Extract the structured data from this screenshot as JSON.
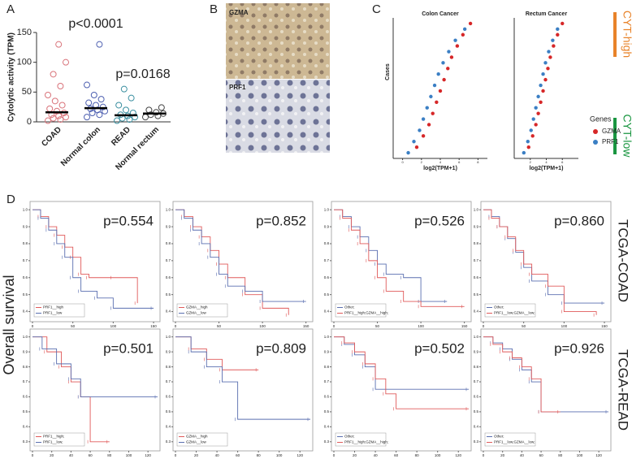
{
  "panel_letters": [
    "A",
    "B",
    "C",
    "D"
  ],
  "image_labels": [
    "GZMA",
    "PRF1"
  ],
  "cyt_labels": [
    "CYT-high",
    "CYT-low"
  ],
  "row_labels": [
    "TCGA-COAD",
    "TCGA-READ"
  ],
  "survival_label": "Overall survival",
  "chart_data": [
    {
      "type": "strip",
      "ylabel": "Cytolytic activity (TPM)",
      "categories": [
        "COAD",
        "Normal colon",
        "READ",
        "Normal rectum"
      ],
      "colors": [
        "#d9737a",
        "#4d5fb0",
        "#3a8fa0",
        "#444444"
      ],
      "values": [
        16,
        23,
        11,
        14
      ],
      "points": [
        [
          2,
          4,
          6,
          8,
          10,
          12,
          15,
          18,
          22,
          28,
          35,
          45,
          60,
          80,
          100,
          130
        ],
        [
          8,
          12,
          15,
          18,
          20,
          22,
          25,
          28,
          32,
          38,
          45,
          62,
          130
        ],
        [
          2,
          4,
          6,
          8,
          10,
          12,
          15,
          20,
          28,
          40,
          55
        ],
        [
          8,
          10,
          12,
          14,
          16,
          20,
          24
        ]
      ],
      "annotations": [
        "p<0.0001",
        "p=0.0168"
      ],
      "ylim": [
        0,
        150
      ],
      "yticks": [
        0,
        50,
        100,
        150
      ]
    },
    {
      "type": "scatter",
      "title": "Colon Cancer",
      "xlabel": "log2(TPM+1)",
      "ylabel": "Cases",
      "xlim": [
        -1,
        9
      ],
      "xticks": [
        0,
        2,
        4,
        6,
        8
      ],
      "ylim": [
        0,
        25
      ],
      "series": [
        {
          "name": "GZMA",
          "color": "#d62728",
          "x": [
            1.5,
            2.2,
            2.8,
            3.2,
            3.6,
            4.0,
            4.4,
            4.8,
            5.2,
            5.8,
            6.4,
            7.2
          ],
          "values": [
            2,
            4,
            6,
            8,
            10,
            12,
            14,
            16,
            18,
            20,
            22,
            24
          ]
        },
        {
          "name": "PRF1",
          "color": "#3b7fc4",
          "x": [
            0.6,
            1.2,
            1.8,
            2.2,
            2.6,
            3.0,
            3.4,
            3.8,
            4.3,
            4.9,
            5.6,
            6.6
          ],
          "values": [
            1,
            3,
            5,
            7,
            9,
            11,
            13,
            15,
            17,
            19,
            21,
            23
          ]
        }
      ]
    },
    {
      "type": "scatter",
      "title": "Rectum Cancer",
      "xlabel": "log2(TPM+1)",
      "legend_title": "Genes",
      "xlim": [
        0,
        8
      ],
      "xticks": [
        2,
        4,
        6
      ],
      "ylim": [
        0,
        25
      ],
      "series": [
        {
          "name": "GZMA",
          "color": "#d62728",
          "x": [
            1.8,
            2.3,
            2.7,
            3.0,
            3.3,
            3.6,
            3.9,
            4.2,
            4.5,
            4.9,
            5.4,
            6.0
          ],
          "values": [
            2,
            4,
            6,
            8,
            10,
            12,
            14,
            16,
            18,
            20,
            22,
            24
          ]
        },
        {
          "name": "PRF1",
          "color": "#3b7fc4",
          "x": [
            1.2,
            1.7,
            2.1,
            2.4,
            2.7,
            3.0,
            3.3,
            3.6,
            3.9,
            4.3,
            4.8,
            5.4
          ],
          "values": [
            1,
            3,
            5,
            7,
            9,
            11,
            13,
            15,
            17,
            19,
            21,
            23
          ]
        }
      ]
    },
    {
      "type": "km",
      "annotation": "p=0.554",
      "xlim": [
        0,
        155
      ],
      "xticks": [
        0,
        50,
        100,
        150
      ],
      "ylim": [
        0.35,
        1.02
      ],
      "yticks": [
        0.4,
        0.5,
        0.6,
        0.7,
        0.8,
        0.9,
        {
          "value": 1,
          "label": "1.0"
        }
      ],
      "series": [
        {
          "name": "PRF1__high",
          "color": "#e05a5a",
          "x": [
            0,
            10,
            20,
            30,
            40,
            50,
            60,
            70,
            100,
            130
          ],
          "values": [
            1,
            0.96,
            0.9,
            0.85,
            0.78,
            0.72,
            0.62,
            0.6,
            0.6,
            0.45
          ]
        },
        {
          "name": "PRF1__low",
          "color": "#5a6fb0",
          "x": [
            0,
            10,
            20,
            30,
            40,
            50,
            60,
            80,
            100,
            150
          ],
          "values": [
            1,
            0.95,
            0.88,
            0.8,
            0.72,
            0.6,
            0.52,
            0.48,
            0.42,
            0.42
          ]
        }
      ]
    },
    {
      "type": "km",
      "annotation": "p=0.852",
      "xlim": [
        0,
        155
      ],
      "xticks": [
        0,
        50,
        100,
        150
      ],
      "ylim": [
        0.35,
        1.02
      ],
      "yticks": [
        0.4,
        0.5,
        0.6,
        0.7,
        0.8,
        0.9,
        {
          "value": 1,
          "label": "1.0"
        }
      ],
      "series": [
        {
          "name": "GZMA__high",
          "color": "#e05a5a",
          "x": [
            0,
            10,
            20,
            30,
            40,
            50,
            60,
            80,
            100,
            130
          ],
          "values": [
            1,
            0.96,
            0.9,
            0.84,
            0.76,
            0.68,
            0.6,
            0.5,
            0.42,
            0.38
          ]
        },
        {
          "name": "GZMA__low",
          "color": "#5a6fb0",
          "x": [
            0,
            10,
            20,
            30,
            40,
            50,
            60,
            80,
            100,
            150
          ],
          "values": [
            1,
            0.95,
            0.88,
            0.8,
            0.72,
            0.62,
            0.55,
            0.52,
            0.46,
            0.46
          ]
        }
      ]
    },
    {
      "type": "km",
      "annotation": "p=0.526",
      "xlim": [
        0,
        155
      ],
      "xticks": [
        0,
        50,
        100,
        150
      ],
      "ylim": [
        0.35,
        1.02
      ],
      "yticks": [
        0.4,
        0.5,
        0.6,
        0.7,
        0.8,
        0.9,
        {
          "value": 1,
          "label": "1.0"
        }
      ],
      "series": [
        {
          "name": "Other;",
          "color": "#5a6fb0",
          "x": [
            0,
            10,
            20,
            30,
            40,
            50,
            60,
            80,
            100,
            130
          ],
          "values": [
            1,
            0.96,
            0.9,
            0.84,
            0.76,
            0.68,
            0.62,
            0.6,
            0.46,
            0.46
          ]
        },
        {
          "name": "PRF1__high;GZMA__high;",
          "color": "#e05a5a",
          "x": [
            0,
            10,
            20,
            30,
            40,
            50,
            60,
            80,
            100,
            150
          ],
          "values": [
            1,
            0.95,
            0.88,
            0.8,
            0.7,
            0.6,
            0.52,
            0.46,
            0.43,
            0.43
          ]
        }
      ]
    },
    {
      "type": "km",
      "annotation": "p=0.860",
      "xlim": [
        0,
        155
      ],
      "xticks": [
        0,
        50,
        100,
        150
      ],
      "ylim": [
        0.35,
        1.02
      ],
      "yticks": [
        0.4,
        0.5,
        0.6,
        0.7,
        0.8,
        0.9,
        {
          "value": 1,
          "label": "1.0"
        }
      ],
      "series": [
        {
          "name": "Other;",
          "color": "#5a6fb0",
          "x": [
            0,
            10,
            20,
            30,
            40,
            50,
            60,
            80,
            100,
            150
          ],
          "values": [
            1,
            0.96,
            0.9,
            0.83,
            0.75,
            0.66,
            0.58,
            0.5,
            0.45,
            0.45
          ]
        },
        {
          "name": "PRF1__low;GZMA__low;",
          "color": "#e05a5a",
          "x": [
            0,
            10,
            20,
            30,
            40,
            50,
            60,
            80,
            100,
            140
          ],
          "values": [
            1,
            0.95,
            0.9,
            0.84,
            0.76,
            0.68,
            0.62,
            0.55,
            0.4,
            0.38
          ]
        }
      ]
    },
    {
      "type": "km",
      "annotation": "p=0.501",
      "xlim": [
        0,
        130
      ],
      "xticks": [
        0,
        20,
        40,
        60,
        80,
        100,
        120
      ],
      "ylim": [
        0.25,
        1.02
      ],
      "yticks": [
        0.3,
        0.4,
        0.5,
        0.6,
        0.7,
        0.8,
        0.9,
        {
          "value": 1,
          "label": "1.0"
        }
      ],
      "series": [
        {
          "name": "PRF1__high;",
          "color": "#e05a5a",
          "x": [
            0,
            15,
            30,
            40,
            50,
            60,
            80
          ],
          "values": [
            1,
            0.9,
            0.8,
            0.7,
            0.6,
            0.3,
            0.3
          ]
        },
        {
          "name": "PRF1__low;",
          "color": "#5a6fb0",
          "x": [
            0,
            10,
            25,
            40,
            50,
            130
          ],
          "values": [
            1,
            0.92,
            0.82,
            0.72,
            0.6,
            0.6
          ]
        }
      ]
    },
    {
      "type": "km",
      "annotation": "p=0.809",
      "xlim": [
        0,
        130
      ],
      "xticks": [
        0,
        20,
        40,
        60,
        80,
        100,
        120
      ],
      "ylim": [
        0.25,
        1.02
      ],
      "yticks": [
        0.3,
        0.4,
        0.5,
        0.6,
        0.7,
        0.8,
        0.9,
        {
          "value": 1,
          "label": "1.0"
        }
      ],
      "series": [
        {
          "name": "GZMA__high",
          "color": "#e05a5a",
          "x": [
            0,
            15,
            30,
            45,
            80
          ],
          "values": [
            1,
            0.92,
            0.85,
            0.78,
            0.78
          ]
        },
        {
          "name": "GZMA__low",
          "color": "#5a6fb0",
          "x": [
            0,
            15,
            30,
            45,
            60,
            130
          ],
          "values": [
            1,
            0.9,
            0.8,
            0.7,
            0.45,
            0.45
          ]
        }
      ]
    },
    {
      "type": "km",
      "annotation": "p=0.502",
      "xlim": [
        0,
        130
      ],
      "xticks": [
        0,
        20,
        40,
        60,
        80,
        100,
        120
      ],
      "ylim": [
        0.25,
        1.02
      ],
      "yticks": [
        0.3,
        0.4,
        0.5,
        0.6,
        0.7,
        0.8,
        0.9,
        {
          "value": 1,
          "label": "1.0"
        }
      ],
      "series": [
        {
          "name": "Other;",
          "color": "#5a6fb0",
          "x": [
            0,
            10,
            20,
            30,
            40,
            130
          ],
          "values": [
            1,
            0.95,
            0.88,
            0.8,
            0.65,
            0.65
          ]
        },
        {
          "name": "PRF1__high;GZMA__high;",
          "color": "#e05a5a",
          "x": [
            0,
            10,
            20,
            30,
            40,
            50,
            60,
            130
          ],
          "values": [
            1,
            0.96,
            0.9,
            0.82,
            0.72,
            0.62,
            0.52,
            0.52
          ]
        }
      ]
    },
    {
      "type": "km",
      "annotation": "p=0.926",
      "xlim": [
        0,
        130
      ],
      "xticks": [
        0,
        20,
        40,
        60,
        80,
        100,
        120
      ],
      "ylim": [
        0.25,
        1.02
      ],
      "yticks": [
        0.3,
        0.4,
        0.5,
        0.6,
        0.7,
        0.8,
        0.9,
        {
          "value": 1,
          "label": "1.0"
        }
      ],
      "series": [
        {
          "name": "Other;",
          "color": "#5a6fb0",
          "x": [
            0,
            10,
            20,
            30,
            40,
            50,
            60,
            130
          ],
          "values": [
            1,
            0.96,
            0.92,
            0.85,
            0.78,
            0.7,
            0.5,
            0.5
          ]
        },
        {
          "name": "PRF1__low;GZMA__low;",
          "color": "#e05a5a",
          "x": [
            0,
            10,
            20,
            30,
            40,
            50,
            60,
            80
          ],
          "values": [
            1,
            0.95,
            0.9,
            0.86,
            0.8,
            0.72,
            0.5,
            0.5
          ]
        }
      ]
    }
  ]
}
